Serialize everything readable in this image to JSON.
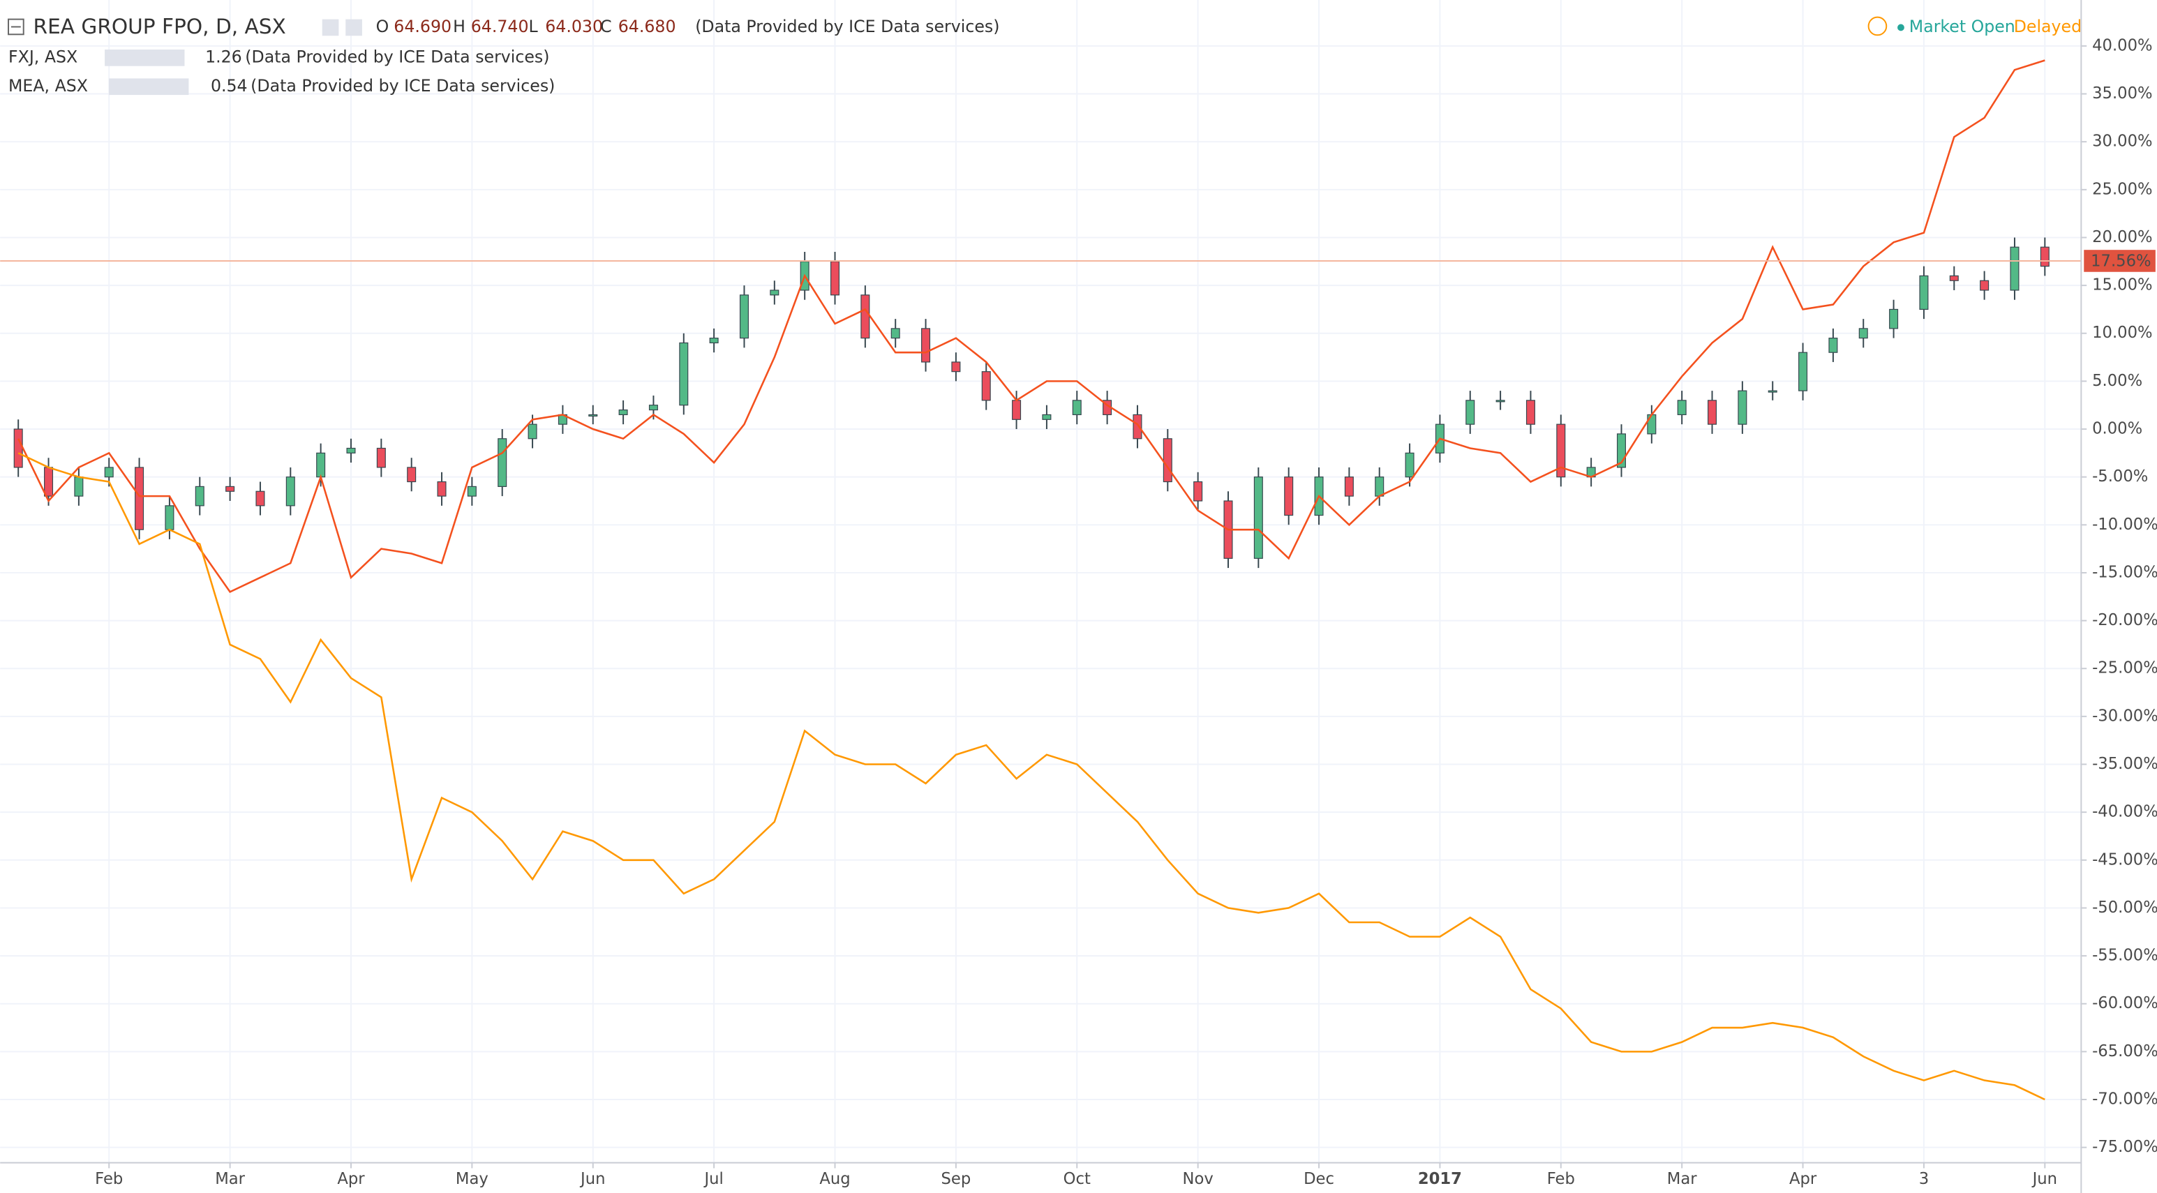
{
  "header": {
    "title": "REA GROUP FPO, D, ASX",
    "quote": [
      [
        "O",
        "64.690"
      ],
      [
        "H",
        "64.740"
      ],
      [
        "L",
        "64.030"
      ],
      [
        "C",
        "64.680"
      ]
    ],
    "source": "(Data Provided by ICE Data services)",
    "status": "Market Open",
    "delay": "Delayed"
  },
  "chart_data": {
    "type": "candlestick",
    "title": "REA GROUP FPO, D, ASX",
    "x": [
      0.25,
      0.5,
      0.75,
      1,
      1.25,
      1.5,
      1.75,
      2,
      2.25,
      2.5,
      2.75,
      3,
      3.25,
      3.5,
      3.75,
      4,
      4.25,
      4.5,
      4.75,
      5,
      5.25,
      5.5,
      5.75,
      6,
      6.25,
      6.5,
      6.75,
      7,
      7.25,
      7.5,
      7.75,
      8,
      8.25,
      8.5,
      8.75,
      9,
      9.25,
      9.5,
      9.75,
      10,
      10.25,
      10.5,
      10.75,
      11,
      11.25,
      11.5,
      11.75,
      12,
      12.25,
      12.5,
      12.75,
      13,
      13.25,
      13.5,
      13.75,
      14,
      14.25,
      14.5,
      14.75,
      15,
      15.25,
      15.5,
      15.75,
      16,
      16.25,
      16.5,
      16.75,
      17
    ],
    "open": [
      0,
      -4,
      -7,
      -5,
      -4,
      -10.5,
      -8,
      -6,
      -6.5,
      -8,
      -5,
      -2.5,
      -2,
      -4,
      -5.5,
      -7,
      -6,
      -1,
      0.5,
      1.5,
      1.5,
      2,
      2.5,
      9,
      9.5,
      14,
      14.5,
      17.5,
      14,
      9.5,
      10.5,
      7,
      6,
      3,
      1,
      1.5,
      3,
      1.5,
      -1,
      -5.5,
      -7.5,
      -13.5,
      -5,
      -9,
      -5,
      -7,
      -5,
      -2.5,
      0.5,
      3,
      3,
      0.5,
      -5,
      -4,
      -0.5,
      1.5,
      3,
      0.5,
      4,
      4,
      8,
      9.5,
      10.5,
      12.5,
      16,
      15.5,
      14.5,
      19
    ],
    "high": [
      1,
      -3,
      -4,
      -3,
      -3,
      -7,
      -5,
      -5,
      -5.5,
      -4,
      -1.5,
      -1,
      -1,
      -3,
      -4.5,
      -5,
      0,
      1.5,
      2.5,
      2.5,
      3,
      3.5,
      10,
      10.5,
      15,
      15.5,
      18.5,
      18.5,
      15,
      11.5,
      11.5,
      8,
      7,
      4,
      2.5,
      4,
      4,
      2.5,
      0,
      -4.5,
      -6.5,
      -4,
      -4,
      -4,
      -4,
      -4,
      -1.5,
      1.5,
      4,
      4,
      4,
      1.5,
      -3,
      0.5,
      2.5,
      4,
      4,
      5,
      5,
      9,
      10.5,
      11.5,
      13.5,
      17,
      17,
      16.5,
      20,
      20
    ],
    "low": [
      -5,
      -8,
      -8,
      -6,
      -11.5,
      -11.5,
      -9,
      -7.5,
      -9,
      -9,
      -6,
      -3.5,
      -5,
      -6.5,
      -8,
      -8,
      -7,
      -2,
      -0.5,
      0.5,
      0.5,
      1,
      1.5,
      8,
      8.5,
      13,
      13.5,
      13,
      8.5,
      8.5,
      6,
      5,
      2,
      0,
      0,
      0.5,
      0.5,
      -2,
      -6.5,
      -8.5,
      -14.5,
      -14.5,
      -10,
      -10,
      -8,
      -8,
      -6,
      -3.5,
      -0.5,
      2,
      -0.5,
      -6,
      -6,
      -5,
      -1.5,
      0.5,
      -0.5,
      -0.5,
      3,
      3,
      7,
      8.5,
      9.5,
      11.5,
      14.5,
      13.5,
      13.5,
      16
    ],
    "close": [
      -4,
      -7,
      -5,
      -4,
      -10.5,
      -8,
      -6,
      -6.5,
      -8,
      -5,
      -2.5,
      -2,
      -4,
      -5.5,
      -7,
      -6,
      -1,
      0.5,
      1.5,
      1.5,
      2,
      2.5,
      9,
      9.5,
      14,
      14.5,
      17.5,
      14,
      9.5,
      10.5,
      7,
      6,
      3,
      1,
      1.5,
      3,
      1.5,
      -1,
      -5.5,
      -7.5,
      -13.5,
      -5,
      -9,
      -5,
      -7,
      -5,
      -2.5,
      0.5,
      3,
      3,
      0.5,
      -5,
      -4,
      -0.5,
      1.5,
      3,
      0.5,
      4,
      4,
      8,
      9.5,
      10.5,
      12.5,
      16,
      15.5,
      14.5,
      19,
      17
    ],
    "up_color": "#53b987",
    "down_color": "#eb4d5c",
    "series": [
      {
        "name": "FXJ, ASX",
        "last": 1.26,
        "color": "#f4511e",
        "values": [
          -1,
          -7.5,
          -4,
          -2.5,
          -7,
          -7,
          -12.5,
          -17,
          -15.5,
          -14,
          -5,
          -15.5,
          -12.5,
          -13,
          -14,
          -4,
          -2.5,
          1,
          1.5,
          0,
          -1,
          1.5,
          -0.5,
          -3.5,
          0.5,
          7.5,
          16,
          11,
          12.5,
          8,
          8,
          9.5,
          7,
          3,
          5,
          5,
          2.5,
          0.5,
          -4,
          -8.5,
          -10.5,
          -10.5,
          -13.5,
          -7,
          -10,
          -7,
          -5.5,
          -1,
          -2,
          -2.5,
          -5.5,
          -4,
          -5,
          -3.5,
          1.5,
          5.5,
          9,
          11.5,
          19,
          12.5,
          13,
          17,
          19.5,
          20.5,
          30.5,
          32.5,
          37.5,
          38.5
        ]
      },
      {
        "name": "MEA, ASX",
        "last": 0.54,
        "color": "#ff9800",
        "values": [
          -2.5,
          -4,
          -5,
          -5.5,
          -12,
          -10.5,
          -12,
          -22.5,
          -24,
          -28.5,
          -22,
          -26,
          -28,
          -47,
          -38.5,
          -40,
          -43,
          -47,
          -42,
          -43,
          -45,
          -45,
          -48.5,
          -47,
          -44,
          -41,
          -31.5,
          -34,
          -35,
          -35,
          -37,
          -34,
          -33,
          -36.5,
          -34,
          -35,
          -38,
          -41,
          -45,
          -48.5,
          -50,
          -50.5,
          -50,
          -48.5,
          -51.5,
          -51.5,
          -53,
          -53,
          -51,
          -53,
          -58.5,
          -60.5,
          -64,
          -65,
          -65,
          -64,
          -62.5,
          -62.5,
          -62,
          -62.5,
          -63.5,
          -65.5,
          -67,
          -68,
          -67,
          -68,
          -68.5,
          -70
        ]
      }
    ],
    "price_line": {
      "value": 17.56,
      "label": "17.56%"
    },
    "xlim": [
      0.1,
      17.3
    ],
    "xticks": [
      {
        "value": 1,
        "label": "Feb"
      },
      {
        "value": 2,
        "label": "Mar"
      },
      {
        "value": 3,
        "label": "Apr"
      },
      {
        "value": 4,
        "label": "May"
      },
      {
        "value": 5,
        "label": "Jun"
      },
      {
        "value": 6,
        "label": "Jul"
      },
      {
        "value": 7,
        "label": "Aug"
      },
      {
        "value": 8,
        "label": "Sep"
      },
      {
        "value": 9,
        "label": "Oct"
      },
      {
        "value": 10,
        "label": "Nov"
      },
      {
        "value": 11,
        "label": "Dec"
      },
      {
        "value": 12,
        "label": "2017"
      },
      {
        "value": 13,
        "label": "Feb"
      },
      {
        "value": 14,
        "label": "Mar"
      },
      {
        "value": 15,
        "label": "Apr"
      },
      {
        "value": 16,
        "label": "3"
      },
      {
        "value": 17,
        "label": "Jun"
      }
    ],
    "ylim": [
      -76.6,
      44.8
    ],
    "yticks": [
      {
        "value": 40,
        "label": "40.00%"
      },
      {
        "value": 35,
        "label": "35.00%"
      },
      {
        "value": 30,
        "label": "30.00%"
      },
      {
        "value": 25,
        "label": "25.00%"
      },
      {
        "value": 20,
        "label": "20.00%"
      },
      {
        "value": 15,
        "label": "15.00%"
      },
      {
        "value": 10,
        "label": "10.00%"
      },
      {
        "value": 5,
        "label": "5.00%"
      },
      {
        "value": 0,
        "label": "0.00%"
      },
      {
        "value": -5,
        "label": "-5.00%"
      },
      {
        "value": -10,
        "label": "-10.00%"
      },
      {
        "value": -15,
        "label": "-15.00%"
      },
      {
        "value": -20,
        "label": "-20.00%"
      },
      {
        "value": -25,
        "label": "-25.00%"
      },
      {
        "value": -30,
        "label": "-30.00%"
      },
      {
        "value": -35,
        "label": "-35.00%"
      },
      {
        "value": -40,
        "label": "-40.00%"
      },
      {
        "value": -45,
        "label": "-45.00%"
      },
      {
        "value": -50,
        "label": "-50.00%"
      },
      {
        "value": -55,
        "label": "-55.00%"
      },
      {
        "value": -60,
        "label": "-60.00%"
      },
      {
        "value": -65,
        "label": "-65.00%"
      },
      {
        "value": -70,
        "label": "-70.00%"
      },
      {
        "value": -75,
        "label": "-75.00%"
      }
    ],
    "grid": true
  }
}
